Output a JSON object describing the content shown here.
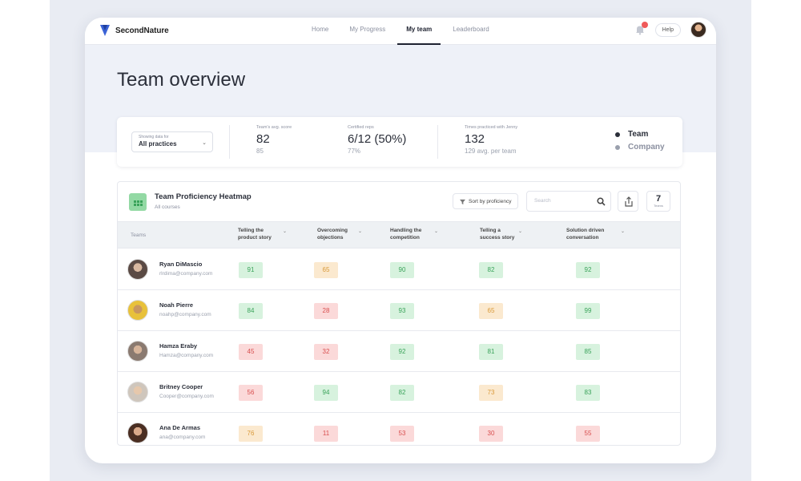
{
  "app": {
    "brand": "SecondNature",
    "nav": [
      {
        "label": "Home",
        "active": false
      },
      {
        "label": "My Progress",
        "active": false
      },
      {
        "label": "My team",
        "active": true
      },
      {
        "label": "Leaderboard",
        "active": false
      }
    ],
    "help_label": "Help"
  },
  "page": {
    "title": "Team overview"
  },
  "stats": {
    "selector_caption": "Showing data for",
    "selector_value": "All practices",
    "avg_score": {
      "caption": "Team's avg. score",
      "value": "82",
      "sub": "85"
    },
    "certified": {
      "caption": "Certified reps",
      "value": "6/12 (50%)",
      "sub": "77%"
    },
    "practiced": {
      "caption": "Times practiced with Jenny",
      "value": "132",
      "sub": "129 avg. per team"
    },
    "legend": [
      {
        "label": "Team",
        "color": "#2b2f3a"
      },
      {
        "label": "Company",
        "color": "#9aa0ad"
      }
    ]
  },
  "heatmap": {
    "title": "Team Proficiency Heatmap",
    "subtitle": "All courses",
    "sort_label": "Sort by proficiency",
    "search_placeholder": "Search",
    "count": "7",
    "count_caption": "Teams",
    "columns": [
      {
        "line1": "Teams",
        "line2": ""
      },
      {
        "line1": "Telling the",
        "line2": "product story"
      },
      {
        "line1": "Overcoming",
        "line2": "objections"
      },
      {
        "line1": "Handling the",
        "line2": "competition"
      },
      {
        "line1": "Telling a",
        "line2": "success story"
      },
      {
        "line1": "Solution driven",
        "line2": "conversation"
      }
    ],
    "rows": [
      {
        "name": "Ryan DiMascio",
        "email": "rlrdima@company.com",
        "scores": [
          {
            "value": "91",
            "level": "g"
          },
          {
            "value": "65",
            "level": "y"
          },
          {
            "value": "90",
            "level": "g"
          },
          {
            "value": "82",
            "level": "g"
          },
          {
            "value": "92",
            "level": "g"
          }
        ]
      },
      {
        "name": "Noah Pierre",
        "email": "noahp@company.com",
        "scores": [
          {
            "value": "84",
            "level": "g"
          },
          {
            "value": "28",
            "level": "r"
          },
          {
            "value": "93",
            "level": "g"
          },
          {
            "value": "65",
            "level": "y"
          },
          {
            "value": "99",
            "level": "g"
          }
        ]
      },
      {
        "name": "Hamza Eraby",
        "email": "Hamza@company.com",
        "scores": [
          {
            "value": "45",
            "level": "r"
          },
          {
            "value": "32",
            "level": "r"
          },
          {
            "value": "92",
            "level": "g"
          },
          {
            "value": "81",
            "level": "g"
          },
          {
            "value": "85",
            "level": "g"
          }
        ]
      },
      {
        "name": "Britney Cooper",
        "email": "Cooper@company.com",
        "scores": [
          {
            "value": "56",
            "level": "r"
          },
          {
            "value": "94",
            "level": "g"
          },
          {
            "value": "82",
            "level": "g"
          },
          {
            "value": "73",
            "level": "y"
          },
          {
            "value": "83",
            "level": "g"
          }
        ]
      },
      {
        "name": "Ana De Armas",
        "email": "ana@company.com",
        "scores": [
          {
            "value": "76",
            "level": "y"
          },
          {
            "value": "11",
            "level": "r"
          },
          {
            "value": "53",
            "level": "r"
          },
          {
            "value": "30",
            "level": "r"
          },
          {
            "value": "55",
            "level": "r"
          }
        ]
      }
    ]
  }
}
